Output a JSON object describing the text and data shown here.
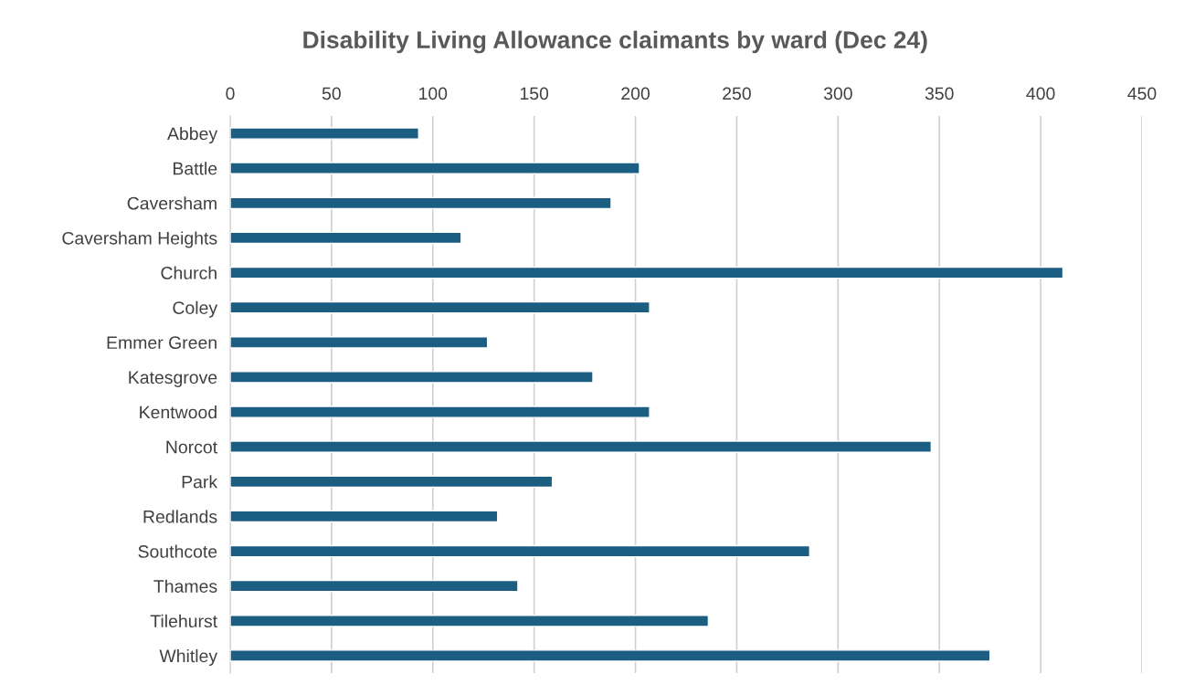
{
  "chart_data": {
    "type": "bar",
    "orientation": "horizontal",
    "title": "Disability Living Allowance claimants by ward (Dec 24)",
    "categories": [
      "Abbey",
      "Battle",
      "Caversham",
      "Caversham Heights",
      "Church",
      "Coley",
      "Emmer Green",
      "Katesgrove",
      "Kentwood",
      "Norcot",
      "Park",
      "Redlands",
      "Southcote",
      "Thames",
      "Tilehurst",
      "Whitley"
    ],
    "values": [
      93,
      202,
      188,
      114,
      411,
      207,
      127,
      179,
      207,
      346,
      159,
      132,
      286,
      142,
      236,
      375
    ],
    "color": "#1b5e82",
    "xlim": [
      0,
      450
    ],
    "xticks": [
      0,
      50,
      100,
      150,
      200,
      250,
      300,
      350,
      400,
      450
    ],
    "grid": "x"
  }
}
